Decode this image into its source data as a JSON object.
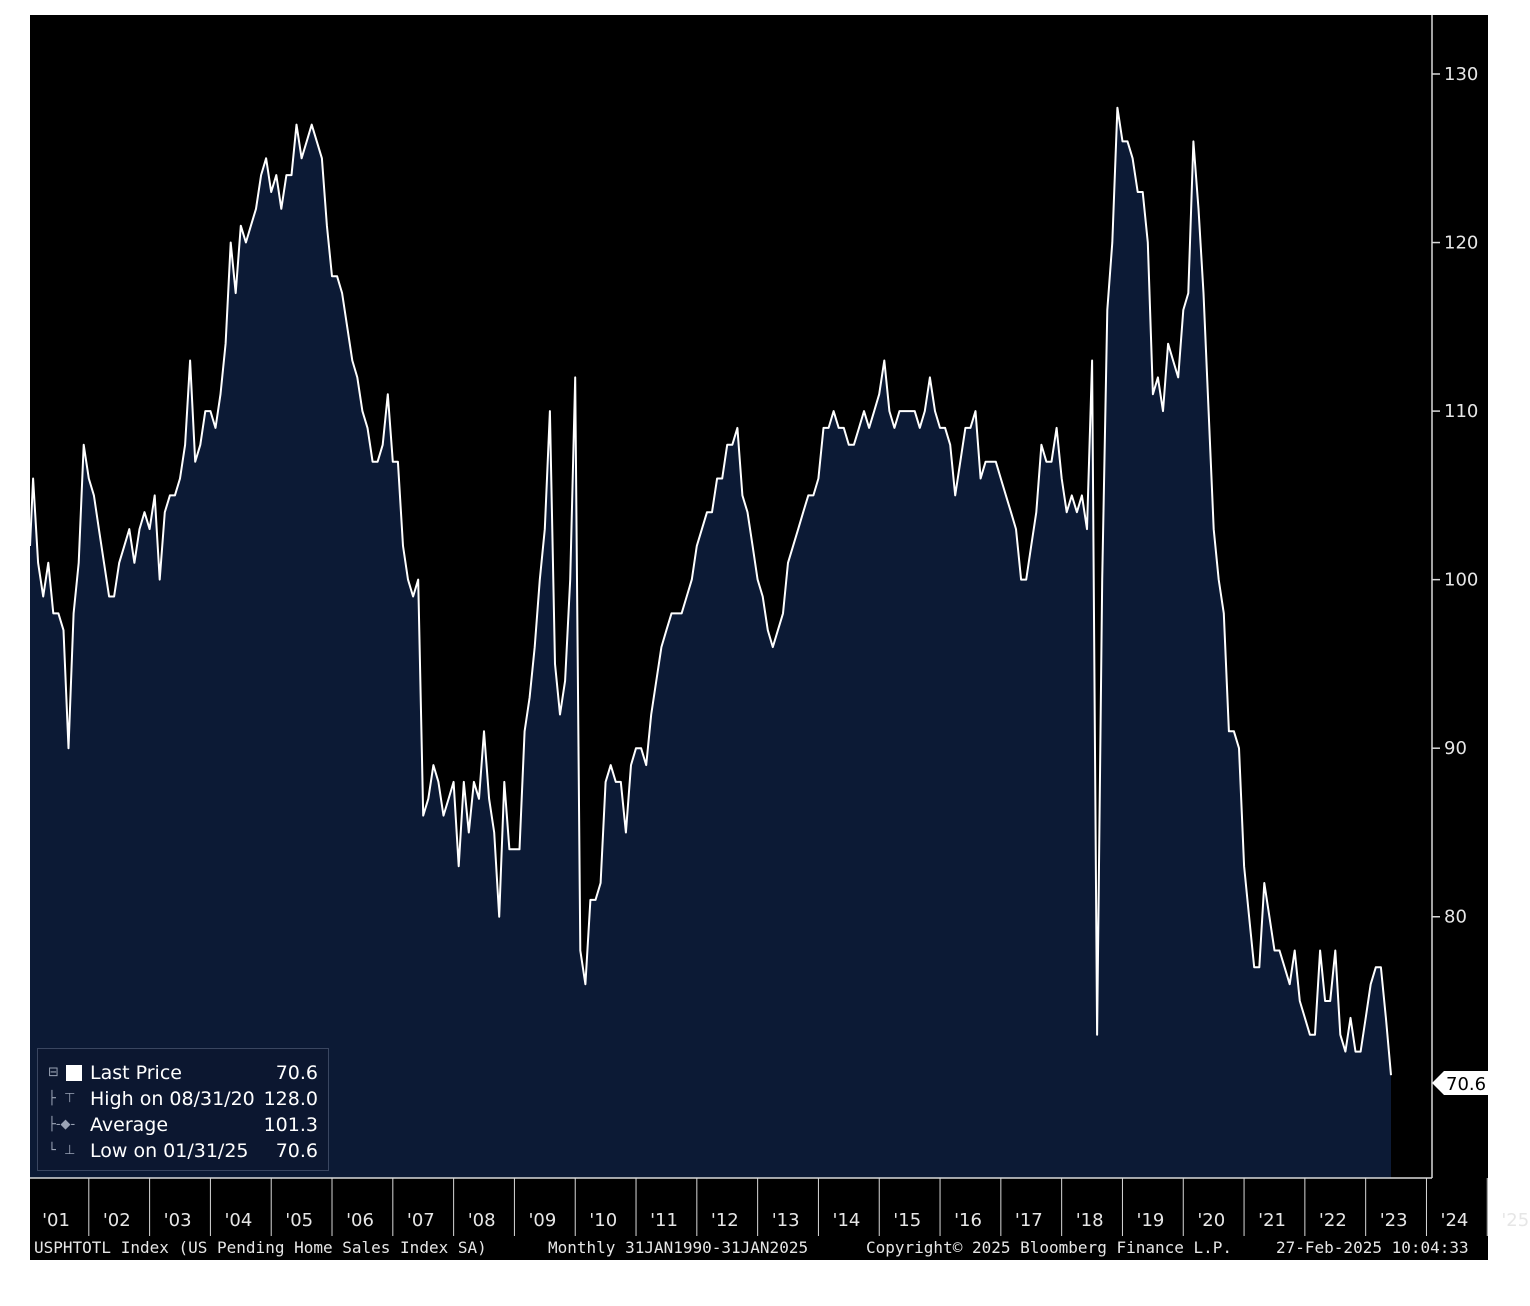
{
  "chart_data": {
    "type": "area",
    "series": [
      {
        "name": "Last Price",
        "x_start": "2001-01",
        "frequency": "monthly",
        "values": [
          102,
          106,
          101,
          99,
          101,
          98,
          98,
          97,
          90,
          98,
          101,
          108,
          106,
          105,
          103,
          101,
          99,
          99,
          101,
          102,
          103,
          101,
          103,
          104,
          103,
          105,
          100,
          104,
          105,
          105,
          106,
          108,
          113,
          107,
          108,
          110,
          110,
          109,
          111,
          114,
          120,
          117,
          121,
          120,
          121,
          122,
          124,
          125,
          123,
          124,
          122,
          124,
          124,
          127,
          125,
          126,
          127,
          126,
          125,
          121,
          118,
          118,
          117,
          115,
          113,
          112,
          110,
          109,
          107,
          107,
          108,
          111,
          107,
          107,
          102,
          100,
          99,
          100,
          86,
          87,
          89,
          88,
          86,
          87,
          88,
          83,
          88,
          85,
          88,
          87,
          91,
          87,
          85,
          80,
          88,
          84,
          84,
          84,
          91,
          93,
          96,
          100,
          103,
          110,
          95,
          92,
          94,
          100,
          112,
          78,
          76,
          81,
          81,
          82,
          88,
          89,
          88,
          88,
          85,
          89,
          90,
          90,
          89,
          92,
          94,
          96,
          97,
          98,
          98,
          98,
          99,
          100,
          102,
          103,
          104,
          104,
          106,
          106,
          108,
          108,
          109,
          105,
          104,
          102,
          100,
          99,
          97,
          96,
          97,
          98,
          101,
          102,
          103,
          104,
          105,
          105,
          106,
          109,
          109,
          110,
          109,
          109,
          108,
          108,
          109,
          110,
          109,
          110,
          111,
          113,
          110,
          109,
          110,
          110,
          110,
          110,
          109,
          110,
          112,
          110,
          109,
          109,
          108,
          105,
          107,
          109,
          109,
          110,
          106,
          107,
          107,
          107,
          106,
          105,
          104,
          103,
          100,
          100,
          102,
          104,
          108,
          107,
          107,
          109,
          106,
          104,
          105,
          104,
          105,
          103,
          113,
          73,
          100,
          116,
          120,
          128,
          126,
          126,
          125,
          123,
          123,
          120,
          111,
          112,
          110,
          114,
          113,
          112,
          116,
          117,
          126,
          122,
          117,
          110,
          103,
          100,
          98,
          91,
          91,
          90,
          83,
          80,
          77,
          77,
          82,
          80,
          78,
          78,
          77,
          76,
          78,
          75,
          74,
          73,
          73,
          78,
          75,
          75,
          78,
          73,
          72,
          74,
          72,
          72,
          74,
          76,
          77,
          77,
          74,
          70.6
        ]
      }
    ],
    "x_ticks": [
      "'01",
      "'02",
      "'03",
      "'04",
      "'05",
      "'06",
      "'07",
      "'08",
      "'09",
      "'10",
      "'11",
      "'12",
      "'13",
      "'14",
      "'15",
      "'16",
      "'17",
      "'18",
      "'19",
      "'20",
      "'21",
      "'22",
      "'23",
      "'24",
      "'25"
    ],
    "y_ticks": [
      80,
      90,
      100,
      110,
      120,
      130
    ],
    "ylim": [
      64.5,
      133.5
    ],
    "last_value_label": "70.6",
    "legend_position": "bottom-left",
    "colors": {
      "background": "#000000",
      "area_fill": "#0c1a35",
      "line": "#ffffff",
      "axis": "#d9d9d9"
    }
  },
  "legend": {
    "rows": [
      {
        "label": "Last Price",
        "value": "70.6",
        "icon": "square-icon"
      },
      {
        "label": "High on 08/31/20",
        "value": "128.0",
        "icon": "high-marker-icon"
      },
      {
        "label": "Average",
        "value": "101.3",
        "icon": "average-marker-icon"
      },
      {
        "label": "Low on 01/31/25",
        "value": "70.6",
        "icon": "low-marker-icon"
      }
    ]
  },
  "footer": {
    "index": "USPHTOTL Index (US Pending Home Sales Index SA)",
    "period": "Monthly 31JAN1990-31JAN2025",
    "copyright": "Copyright© 2025 Bloomberg Finance L.P.",
    "timestamp": "27-Feb-2025 10:04:33"
  }
}
